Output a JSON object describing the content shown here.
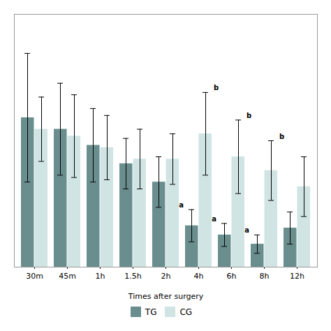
{
  "chart_data": {
    "type": "bar",
    "categories": [
      "30m",
      "45m",
      "1h",
      "1.5h",
      "2h",
      "4h",
      "6h",
      "8h",
      "12h"
    ],
    "series": [
      {
        "name": "TG",
        "color": "#6a8e8e",
        "values": [
          65,
          60,
          53,
          45,
          37,
          18,
          14,
          10,
          17
        ],
        "errors": [
          28,
          20,
          16,
          11,
          11,
          7,
          5,
          4,
          7
        ],
        "annotations": [
          null,
          null,
          null,
          null,
          null,
          "a",
          "a",
          "a",
          null
        ]
      },
      {
        "name": "CG",
        "color": "#d0e4e4",
        "values": [
          60,
          57,
          52,
          47,
          47,
          58,
          48,
          42,
          35
        ],
        "errors": [
          14,
          18,
          14,
          13,
          11,
          18,
          16,
          13,
          13
        ],
        "annotations": [
          null,
          null,
          null,
          null,
          null,
          "b",
          "b",
          "b",
          null
        ]
      }
    ],
    "xlabel": "Times after surgery",
    "ylim": [
      0,
      110
    ],
    "yticks": [],
    "tick_labels": "x",
    "legend": "bottom"
  }
}
